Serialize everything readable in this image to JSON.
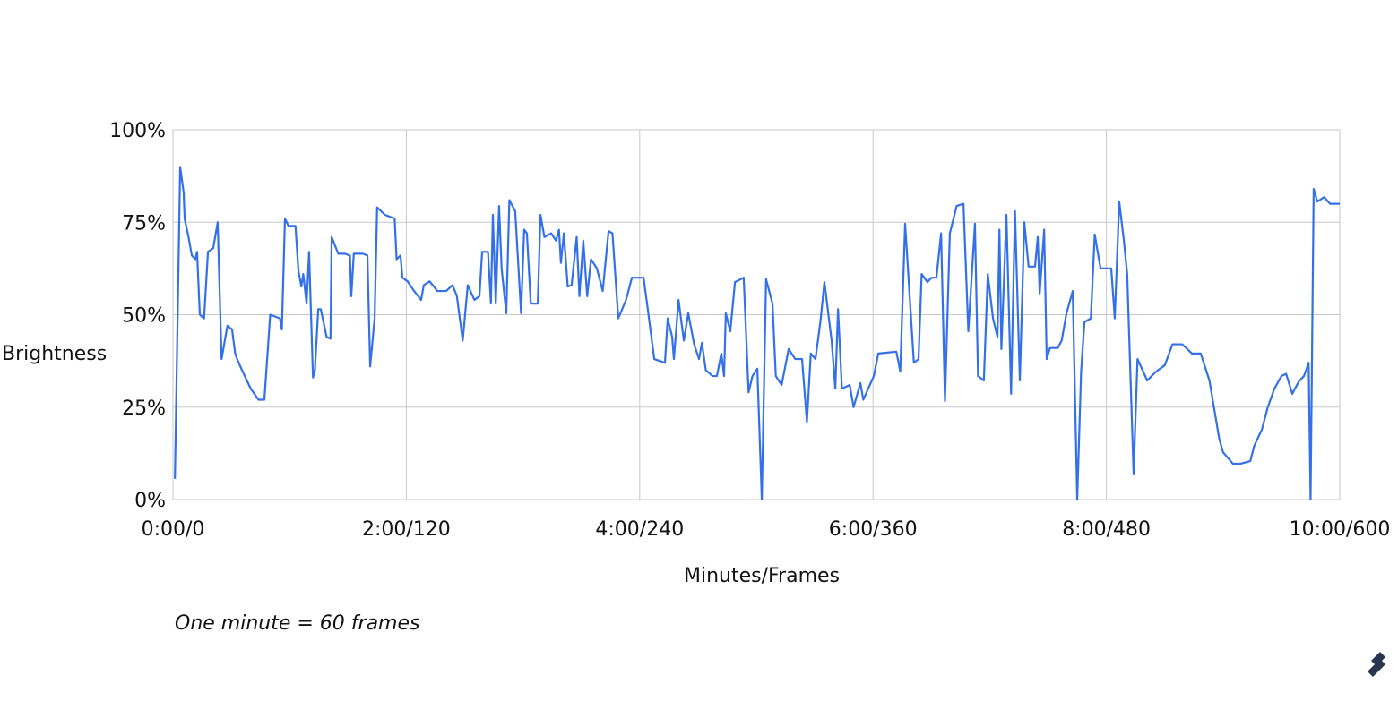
{
  "chart_data": {
    "type": "line",
    "x_label": "Minutes/Frames",
    "y_label": "Brightness",
    "note": "One minute = 60 frames",
    "xlim": [
      0,
      600
    ],
    "ylim": [
      0,
      100
    ],
    "xticks": [
      {
        "value": 0,
        "label": "0:00/0"
      },
      {
        "value": 120,
        "label": "2:00/120"
      },
      {
        "value": 240,
        "label": "4:00/240"
      },
      {
        "value": 360,
        "label": "6:00/360"
      },
      {
        "value": 480,
        "label": "8:00/480"
      },
      {
        "value": 600,
        "label": "10:00/600"
      }
    ],
    "yticks": [
      {
        "value": 0,
        "label": "0%"
      },
      {
        "value": 25,
        "label": "25%"
      },
      {
        "value": 50,
        "label": "50%"
      },
      {
        "value": 75,
        "label": "75%"
      },
      {
        "value": 100,
        "label": "100%"
      }
    ],
    "grid": true,
    "series": [
      {
        "name": "Brightness",
        "color": "#3470e8",
        "x": [
          1,
          3.7,
          5.5,
          6,
          8,
          9.7,
          11.5,
          12.4,
          13.8,
          16,
          18,
          20.7,
          23,
          25,
          28,
          30.4,
          32,
          33,
          35.5,
          40,
          44,
          47,
          50,
          55,
          56,
          57.6,
          59.4,
          63,
          64.5,
          66,
          67,
          68.7,
          70,
          72,
          73,
          74.7,
          76,
          79,
          81,
          81.6,
          85,
          88.5,
          91,
          91.7,
          93,
          97.7,
          100,
          101.4,
          103.7,
          105,
          109,
          114,
          115,
          117,
          118,
          120.7,
          124,
          127.6,
          129,
          132,
          136,
          140.5,
          143.8,
          146,
          149,
          151.6,
          155,
          157.6,
          159,
          162,
          163.5,
          164.5,
          166,
          167.7,
          169,
          171.4,
          173,
          176,
          179,
          180.6,
          182,
          184,
          187.6,
          189,
          191,
          194.5,
          197,
          198.5,
          199.5,
          201,
          203,
          205,
          207.6,
          209,
          211,
          213,
          215,
          218,
          221,
          224,
          226,
          229,
          233,
          236,
          242,
          243.8,
          247.5,
          253,
          254.4,
          256.7,
          257.6,
          260,
          262.7,
          265,
          268,
          270.5,
          272,
          274,
          277.5,
          279.7,
          282,
          283.4,
          284.3,
          286.6,
          289,
          293.5,
          296,
          298,
          300.5,
          302.8,
          305,
          308.3,
          310,
          313,
          316.6,
          320,
          323.5,
          326,
          328,
          330.4,
          333,
          335,
          338.7,
          340.6,
          342,
          344,
          348,
          350,
          353.5,
          355,
          360.4,
          362.7,
          372,
          374,
          376.5,
          381,
          383.4,
          385,
          388,
          390,
          392.6,
          395,
          397,
          399.5,
          403,
          406.5,
          409,
          412.4,
          414,
          417,
          419,
          421.7,
          424,
          425,
          426,
          428.6,
          431,
          433,
          435.5,
          437.8,
          440,
          443.3,
          444.7,
          445.7,
          448,
          449.3,
          451,
          455,
          457,
          459.5,
          462.7,
          465,
          467,
          468.7,
          472,
          474,
          477,
          482.5,
          484.3,
          486.6,
          489,
          490.7,
          494,
          496,
          501,
          505.5,
          510,
          514,
          519,
          524,
          528.5,
          533,
          538,
          540,
          545,
          549,
          554,
          556,
          560,
          563,
          566.4,
          570,
          572.4,
          575.6,
          579,
          581.6,
          584,
          585,
          586.6,
          588.5,
          592,
          595,
          600
        ],
        "values": [
          5.6,
          90,
          83,
          76,
          71,
          66,
          65,
          67,
          50,
          49,
          67,
          68,
          75,
          38,
          47,
          46,
          39.5,
          38,
          35,
          30,
          27,
          27,
          50,
          49,
          46,
          76,
          74,
          74,
          62,
          57.6,
          61,
          53,
          67,
          33,
          35,
          51.5,
          51.5,
          44,
          43.5,
          71,
          66.5,
          66.5,
          66,
          55,
          66.5,
          66.5,
          66,
          36,
          49,
          79,
          77,
          76,
          65,
          66,
          60,
          59,
          56.4,
          54,
          58,
          59,
          56.4,
          56.4,
          58,
          55,
          43,
          58,
          54,
          55,
          67,
          67,
          53,
          77,
          53,
          79.4,
          62.5,
          50.4,
          81,
          78,
          50.4,
          73,
          72,
          53,
          53,
          77,
          71,
          72,
          70,
          73,
          64,
          72,
          57.6,
          58,
          71,
          55,
          70,
          55,
          65,
          62.5,
          56.4,
          72.6,
          72,
          49,
          54,
          60,
          60,
          53,
          38,
          37,
          49,
          44,
          38,
          54,
          43,
          50.4,
          42,
          38,
          42.4,
          35,
          33.4,
          33.4,
          39.5,
          33.4,
          50.4,
          45.5,
          58.8,
          60,
          29,
          33.4,
          35.4,
          0,
          59.6,
          53,
          33.4,
          31,
          40.7,
          38,
          38,
          21,
          39.5,
          38,
          48.4,
          58.8,
          43,
          30,
          51.5,
          30,
          31,
          25,
          31.5,
          27,
          33.4,
          39.5,
          40,
          34.6,
          74.6,
          37,
          38,
          61,
          58.8,
          60,
          60,
          72,
          26.6,
          72,
          79.4,
          80,
          45.5,
          74.6,
          33.4,
          32.2,
          61,
          49,
          44,
          73,
          40.7,
          77,
          28.6,
          78,
          32.2,
          75,
          63,
          63,
          71,
          55.7,
          73,
          38,
          41,
          41,
          43,
          50.4,
          56.4,
          0,
          34.6,
          48,
          49,
          71.7,
          62.5,
          62.5,
          49,
          80.6,
          70,
          61,
          6.8,
          38,
          32.2,
          34.6,
          36.3,
          42,
          42,
          39.5,
          39.5,
          32.2,
          16.5,
          12.8,
          9.7,
          9.7,
          10.4,
          14.5,
          19,
          25,
          30,
          33.4,
          34,
          28.6,
          32,
          33.4,
          37,
          0,
          84,
          80.6,
          81.8,
          80,
          80
        ]
      }
    ]
  }
}
